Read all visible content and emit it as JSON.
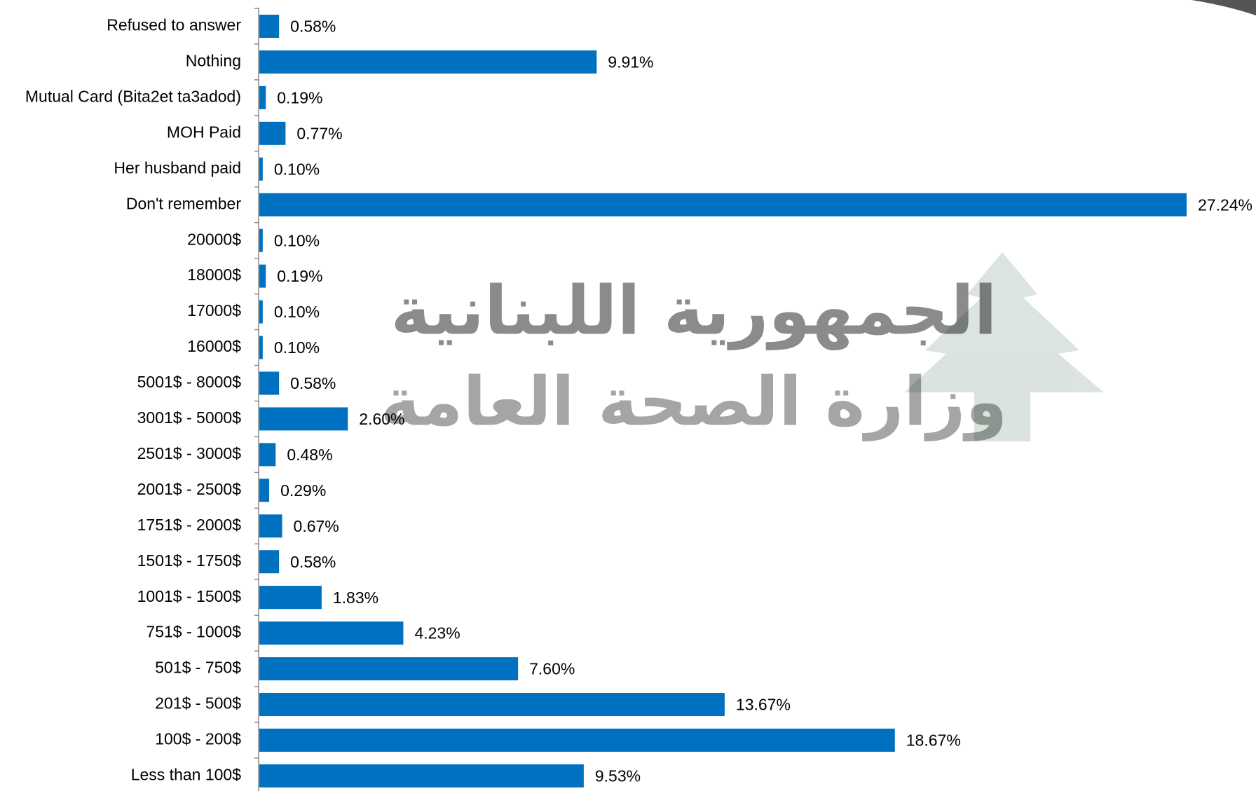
{
  "chart_data": {
    "type": "bar",
    "orientation": "horizontal",
    "color": "#0070c0",
    "categories": [
      "Refused to answer",
      "Nothing",
      "Mutual Card (Bita2et ta3adod)",
      "MOH Paid",
      "Her husband paid",
      "Don't remember",
      "20000$",
      "18000$",
      "17000$",
      "16000$",
      "5001$ - 8000$",
      "3001$ - 5000$",
      "2501$ - 3000$",
      "2001$ - 2500$",
      "1751$ - 2000$",
      "1501$ - 1750$",
      "1001$  - 1500$",
      "751$ - 1000$",
      "501$ - 750$",
      "201$ - 500$",
      "100$ - 200$",
      "Less than 100$"
    ],
    "values": [
      0.58,
      9.91,
      0.19,
      0.77,
      0.1,
      27.24,
      0.1,
      0.19,
      0.1,
      0.1,
      0.58,
      2.6,
      0.48,
      0.29,
      0.67,
      0.58,
      1.83,
      4.23,
      7.6,
      13.67,
      18.67,
      9.53
    ],
    "value_labels": [
      "0.58%",
      "9.91%",
      "0.19%",
      "0.77%",
      "0.10%",
      "27.24%",
      "0.10%",
      "0.19%",
      "0.10%",
      "0.10%",
      "0.58%",
      "2.60%",
      "0.48%",
      "0.29%",
      "0.67%",
      "0.58%",
      "1.83%",
      "4.23%",
      "7.60%",
      "13.67%",
      "18.67%",
      "9.53%"
    ],
    "watermark": [
      "الجمهورية اللبنانية",
      "وزارة الصحة العامة"
    ]
  }
}
